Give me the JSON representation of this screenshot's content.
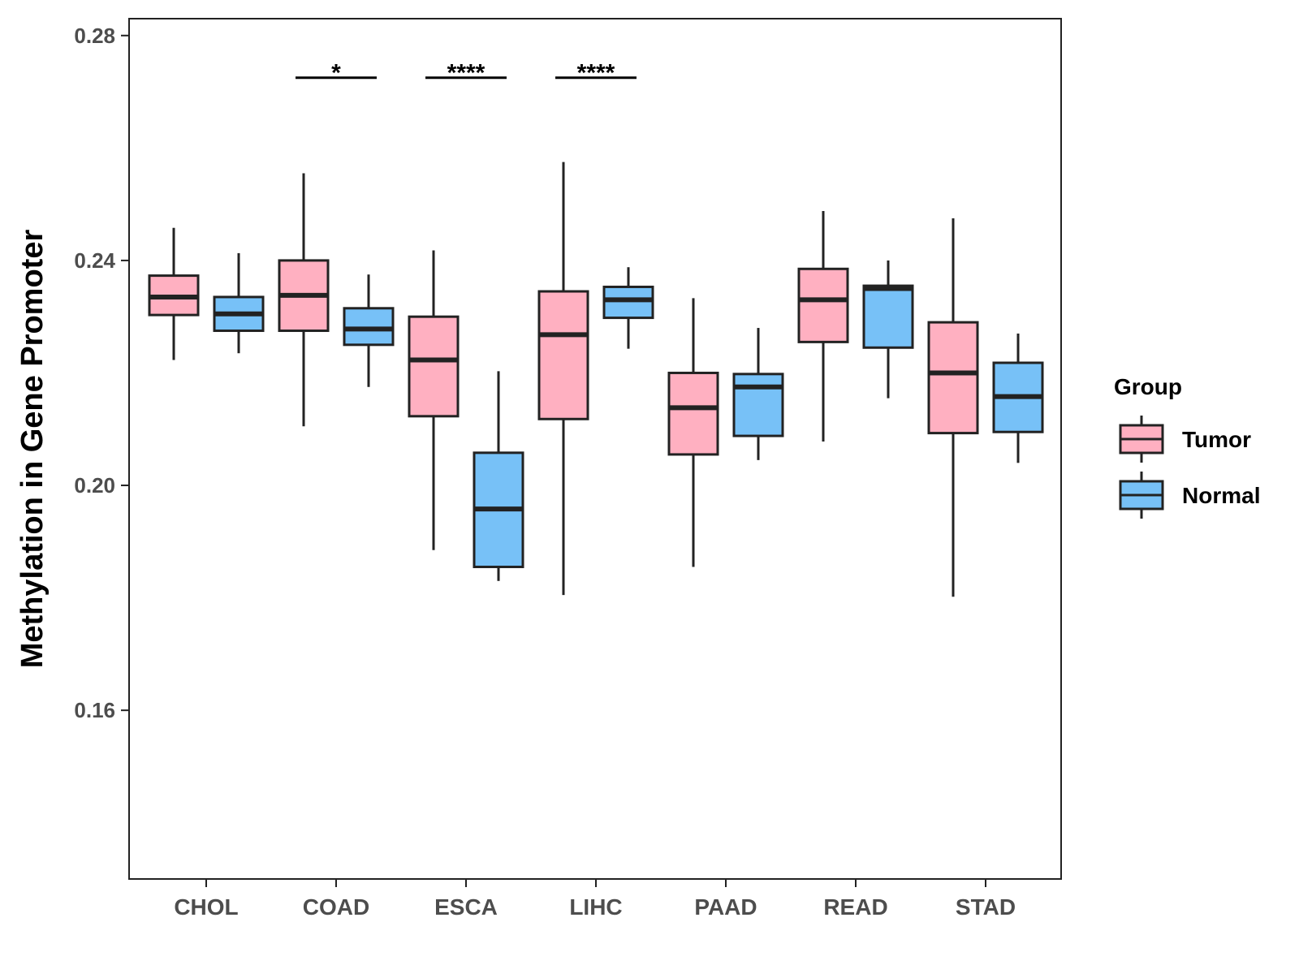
{
  "chart_data": {
    "type": "box",
    "title": "",
    "xlabel": "",
    "ylabel": "Methylation in Gene Promoter",
    "ylim": [
      0.13,
      0.283
    ],
    "yticks": [
      0.16,
      0.2,
      0.24,
      0.28
    ],
    "ytick_labels": [
      "0.16",
      "0.20",
      "0.24",
      "0.28"
    ],
    "categories": [
      "CHOL",
      "COAD",
      "ESCA",
      "LIHC",
      "PAAD",
      "READ",
      "STAD"
    ],
    "legend": {
      "title": "Group",
      "position": "right",
      "entries": [
        {
          "name": "Tumor",
          "color": "#FFB0C1"
        },
        {
          "name": "Normal",
          "color": "#77C1F7"
        }
      ]
    },
    "series": [
      {
        "name": "Tumor",
        "color": "#FFB0C1",
        "boxes": [
          {
            "whisker_low": 0.2223,
            "q1": 0.2303,
            "median": 0.2335,
            "q3": 0.2373,
            "whisker_high": 0.2458
          },
          {
            "whisker_low": 0.2105,
            "q1": 0.2275,
            "median": 0.2338,
            "q3": 0.24,
            "whisker_high": 0.2555
          },
          {
            "whisker_low": 0.1885,
            "q1": 0.2123,
            "median": 0.2223,
            "q3": 0.23,
            "whisker_high": 0.2418
          },
          {
            "whisker_low": 0.1805,
            "q1": 0.2118,
            "median": 0.2268,
            "q3": 0.2345,
            "whisker_high": 0.2575
          },
          {
            "whisker_low": 0.1855,
            "q1": 0.2055,
            "median": 0.2138,
            "q3": 0.22,
            "whisker_high": 0.2333
          },
          {
            "whisker_low": 0.2078,
            "q1": 0.2255,
            "median": 0.233,
            "q3": 0.2385,
            "whisker_high": 0.2488
          },
          {
            "whisker_low": 0.1802,
            "q1": 0.2093,
            "median": 0.22,
            "q3": 0.229,
            "whisker_high": 0.2475
          }
        ]
      },
      {
        "name": "Normal",
        "color": "#77C1F7",
        "boxes": [
          {
            "whisker_low": 0.2235,
            "q1": 0.2275,
            "median": 0.2305,
            "q3": 0.2335,
            "whisker_high": 0.2413
          },
          {
            "whisker_low": 0.2175,
            "q1": 0.225,
            "median": 0.2278,
            "q3": 0.2315,
            "whisker_high": 0.2375
          },
          {
            "whisker_low": 0.183,
            "q1": 0.1855,
            "median": 0.1958,
            "q3": 0.2058,
            "whisker_high": 0.2203
          },
          {
            "whisker_low": 0.2243,
            "q1": 0.2298,
            "median": 0.233,
            "q3": 0.2353,
            "whisker_high": 0.2388
          },
          {
            "whisker_low": 0.2045,
            "q1": 0.2088,
            "median": 0.2175,
            "q3": 0.2198,
            "whisker_high": 0.228
          },
          {
            "whisker_low": 0.2155,
            "q1": 0.2245,
            "median": 0.235,
            "q3": 0.2355,
            "whisker_high": 0.24
          },
          {
            "whisker_low": 0.204,
            "q1": 0.2095,
            "median": 0.2158,
            "q3": 0.2218,
            "whisker_high": 0.227
          }
        ]
      }
    ],
    "annotations": [
      {
        "category": "COAD",
        "label": "*",
        "y": 0.2725
      },
      {
        "category": "ESCA",
        "label": "****",
        "y": 0.2725
      },
      {
        "category": "LIHC",
        "label": "****",
        "y": 0.2725
      }
    ],
    "grid": false
  }
}
